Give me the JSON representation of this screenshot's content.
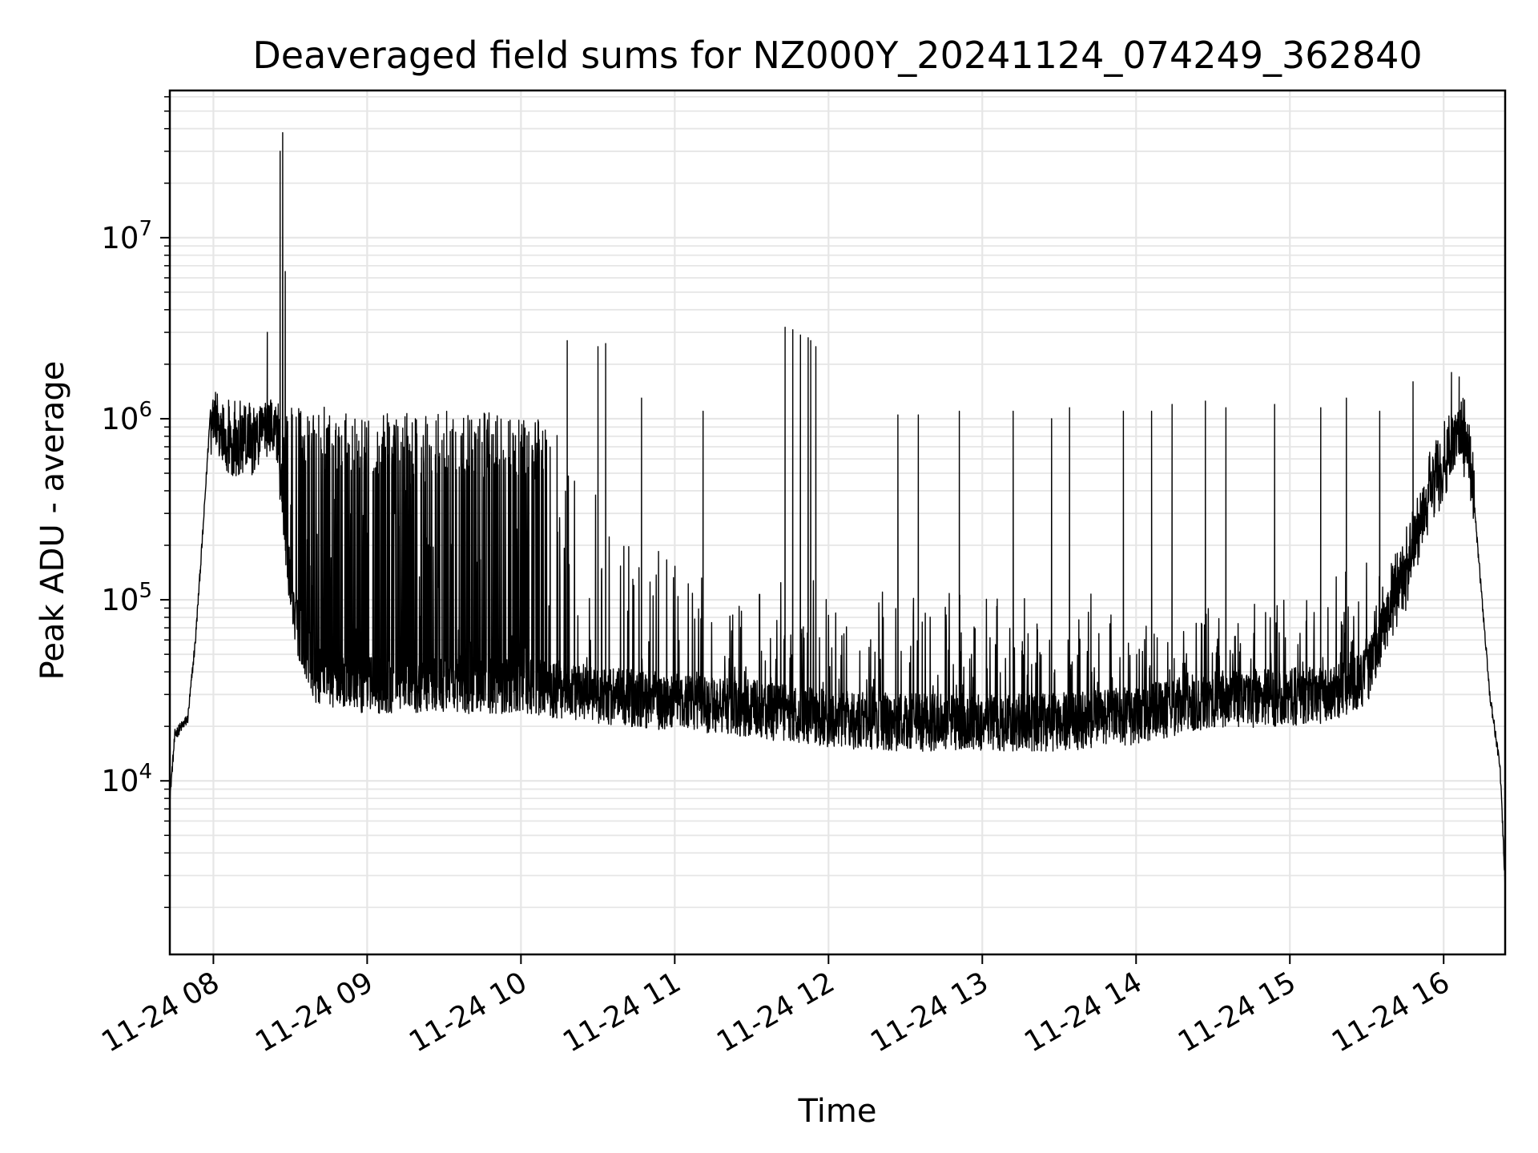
{
  "chart_data": {
    "type": "line",
    "title": "Deaveraged field sums for NZ000Y_20241124_074249_362840",
    "xlabel": "Time",
    "ylabel": "Peak ADU - average",
    "yscale": "log",
    "grid": true,
    "grid_minor": true,
    "line_color": "#000000",
    "x_range": [
      "11-24 07:43",
      "11-24 16:24"
    ],
    "ylim": [
      1100,
      65000000
    ],
    "x_ticks": [
      "11-24 08",
      "11-24 09",
      "11-24 10",
      "11-24 11",
      "11-24 12",
      "11-24 13",
      "11-24 14",
      "11-24 15",
      "11-24 16"
    ],
    "y_ticks": [
      {
        "base": "10",
        "exp": "4",
        "value": 10000
      },
      {
        "base": "10",
        "exp": "5",
        "value": 100000
      },
      {
        "base": "10",
        "exp": "6",
        "value": 1000000
      },
      {
        "base": "10",
        "exp": "7",
        "value": 10000000
      }
    ],
    "series": [
      {
        "style": "dense noisy baseline with upward spikes",
        "baseline": [
          {
            "x": "11-24 07:43",
            "y": 8000
          },
          {
            "x": "11-24 07:45",
            "y": 18000
          },
          {
            "x": "11-24 07:50",
            "y": 22000
          },
          {
            "x": "11-24 07:53",
            "y": 60000
          },
          {
            "x": "11-24 07:56",
            "y": 250000
          },
          {
            "x": "11-24 07:59",
            "y": 1200000
          },
          {
            "x": "11-24 08:05",
            "y": 700000
          },
          {
            "x": "11-24 08:15",
            "y": 700000
          },
          {
            "x": "11-24 08:24",
            "y": 1000000
          },
          {
            "x": "11-24 08:30",
            "y": 120000
          },
          {
            "x": "11-24 08:33",
            "y": 70000
          },
          {
            "x": "11-24 08:40",
            "y": 38000
          },
          {
            "x": "11-24 09:00",
            "y": 34000
          },
          {
            "x": "11-24 09:30",
            "y": 34000
          },
          {
            "x": "11-24 10:00",
            "y": 34000
          },
          {
            "x": "11-24 10:30",
            "y": 30000
          },
          {
            "x": "11-24 11:00",
            "y": 27000
          },
          {
            "x": "11-24 11:30",
            "y": 25000
          },
          {
            "x": "11-24 12:00",
            "y": 22000
          },
          {
            "x": "11-24 12:30",
            "y": 21000
          },
          {
            "x": "11-24 13:00",
            "y": 21000
          },
          {
            "x": "11-24 13:30",
            "y": 21000
          },
          {
            "x": "11-24 14:00",
            "y": 23000
          },
          {
            "x": "11-24 14:30",
            "y": 28000
          },
          {
            "x": "11-24 15:00",
            "y": 29000
          },
          {
            "x": "11-24 15:15",
            "y": 30000
          },
          {
            "x": "11-24 15:30",
            "y": 38000
          },
          {
            "x": "11-24 15:35",
            "y": 60000
          },
          {
            "x": "11-24 15:45",
            "y": 150000
          },
          {
            "x": "11-24 15:55",
            "y": 400000
          },
          {
            "x": "11-24 16:05",
            "y": 800000
          },
          {
            "x": "11-24 16:10",
            "y": 700000
          },
          {
            "x": "11-24 16:15",
            "y": 100000
          },
          {
            "x": "11-24 16:18",
            "y": 30000
          },
          {
            "x": "11-24 16:22",
            "y": 12000
          },
          {
            "x": "11-24 16:24",
            "y": 2600
          }
        ],
        "upper_envelope": [
          {
            "x": "11-24 07:55",
            "y": 1300000
          },
          {
            "x": "11-24 08:30",
            "y": 1200000
          },
          {
            "x": "11-24 09:10",
            "y": 1100000
          },
          {
            "x": "11-24 09:40",
            "y": 1100000
          },
          {
            "x": "11-24 10:05",
            "y": 1050000
          },
          {
            "x": "11-24 10:20",
            "y": 700000
          },
          {
            "x": "11-24 10:40",
            "y": 400000
          },
          {
            "x": "11-24 11:00",
            "y": 200000
          },
          {
            "x": "11-24 11:30",
            "y": 150000
          },
          {
            "x": "11-24 12:30",
            "y": 110000
          },
          {
            "x": "11-24 14:00",
            "y": 110000
          },
          {
            "x": "11-24 15:00",
            "y": 110000
          },
          {
            "x": "11-24 15:40",
            "y": 200000
          }
        ],
        "spikes": [
          {
            "x": "11-24 08:21",
            "y": 3000000
          },
          {
            "x": "11-24 08:26",
            "y": 30000000
          },
          {
            "x": "11-24 08:27",
            "y": 38000000
          },
          {
            "x": "11-24 08:28",
            "y": 6500000
          },
          {
            "x": "11-24 10:18",
            "y": 2700000
          },
          {
            "x": "11-24 10:30",
            "y": 2500000
          },
          {
            "x": "11-24 10:33",
            "y": 2600000
          },
          {
            "x": "11-24 10:47",
            "y": 1300000
          },
          {
            "x": "11-24 11:11",
            "y": 1100000
          },
          {
            "x": "11-24 11:43",
            "y": 3200000
          },
          {
            "x": "11-24 11:46",
            "y": 3100000
          },
          {
            "x": "11-24 11:49",
            "y": 2900000
          },
          {
            "x": "11-24 11:52",
            "y": 2800000
          },
          {
            "x": "11-24 11:53",
            "y": 2700000
          },
          {
            "x": "11-24 11:55",
            "y": 2500000
          },
          {
            "x": "11-24 12:27",
            "y": 1050000
          },
          {
            "x": "11-24 12:35",
            "y": 1050000
          },
          {
            "x": "11-24 12:51",
            "y": 1100000
          },
          {
            "x": "11-24 13:12",
            "y": 1100000
          },
          {
            "x": "11-24 13:27",
            "y": 1000000
          },
          {
            "x": "11-24 13:34",
            "y": 1150000
          },
          {
            "x": "11-24 13:55",
            "y": 1100000
          },
          {
            "x": "11-24 14:06",
            "y": 1100000
          },
          {
            "x": "11-24 14:14",
            "y": 1200000
          },
          {
            "x": "11-24 14:27",
            "y": 1250000
          },
          {
            "x": "11-24 14:35",
            "y": 1150000
          },
          {
            "x": "11-24 14:54",
            "y": 1200000
          },
          {
            "x": "11-24 15:12",
            "y": 1150000
          },
          {
            "x": "11-24 15:22",
            "y": 1300000
          },
          {
            "x": "11-24 15:35",
            "y": 1100000
          },
          {
            "x": "11-24 15:48",
            "y": 1600000
          },
          {
            "x": "11-24 16:03",
            "y": 1800000
          },
          {
            "x": "11-24 16:06",
            "y": 1700000
          }
        ]
      }
    ]
  }
}
